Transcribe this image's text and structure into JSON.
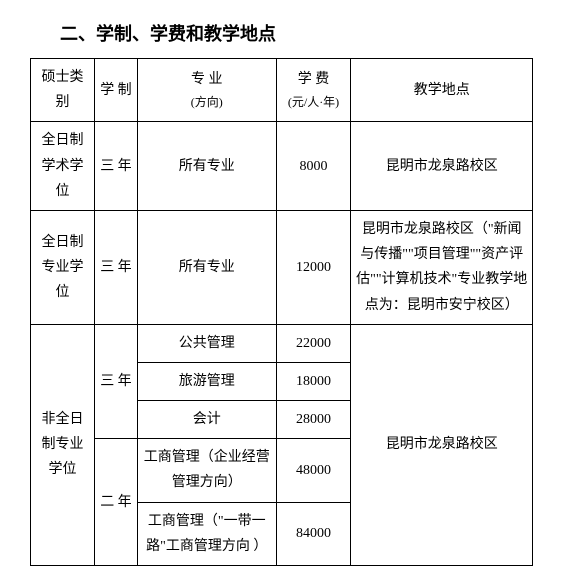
{
  "title": "二、学制、学费和教学地点",
  "headers": {
    "col1": "硕士类别",
    "col2": "学 制",
    "col3_main": "专 业",
    "col3_sub": "(方向)",
    "col4_main": "学 费",
    "col4_sub": "(元/人·年)",
    "col5": "教学地点"
  },
  "rows": [
    {
      "category": "全日制学术学位",
      "duration": "三 年",
      "major": "所有专业",
      "fee": "8000",
      "location": "昆明市龙泉路校区"
    },
    {
      "category": "全日制专业学位",
      "duration": "三 年",
      "major": "所有专业",
      "fee": "12000",
      "location": "昆明市龙泉路校区（\"新闻与传播\"\"项目管理\"\"资产评估\"\"计算机技术\"专业教学地点为：昆明市安宁校区）"
    },
    {
      "category": "非全日制专业学位",
      "duration3": "三 年",
      "duration2": "二 年",
      "majors": [
        {
          "name": "公共管理",
          "fee": "22000"
        },
        {
          "name": "旅游管理",
          "fee": "18000"
        },
        {
          "name": "会计",
          "fee": "28000"
        },
        {
          "name": "工商管理（企业经营管理方向）",
          "fee": "48000"
        },
        {
          "name": "工商管理（\"一带一路\"工商管理方向 ）",
          "fee": "84000"
        }
      ],
      "location": "昆明市龙泉路校区"
    }
  ]
}
